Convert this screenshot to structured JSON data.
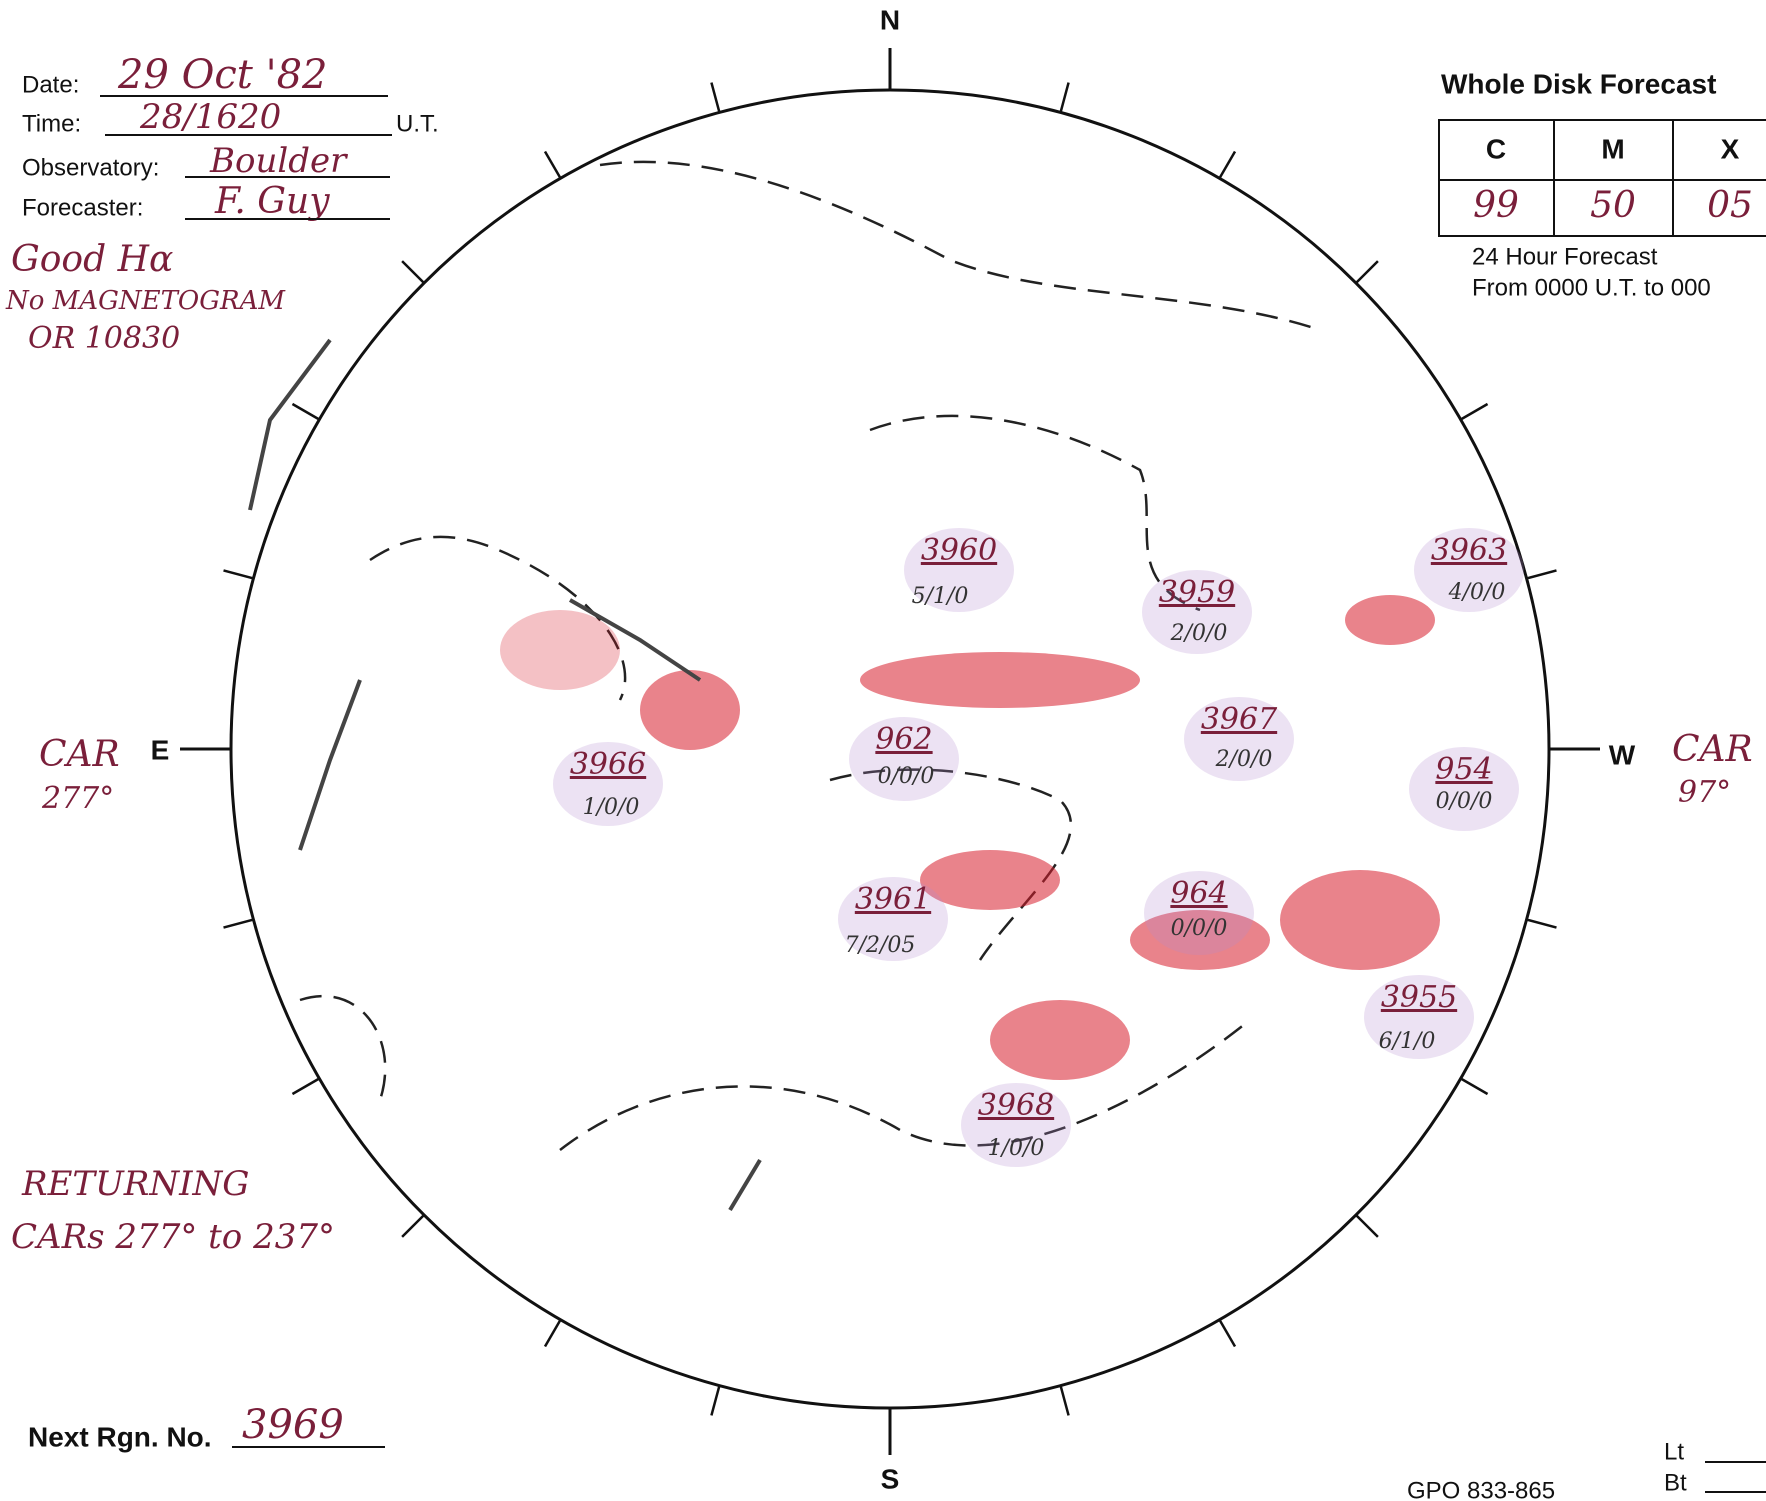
{
  "header": {
    "date_label": "Date:",
    "date": "29 Oct '82",
    "time_label": "Time:",
    "time": "28/1620",
    "time_unit": "U.T.",
    "observatory_label": "Observatory:",
    "observatory": "Boulder",
    "forecaster_label": "Forecaster:",
    "forecaster": "F. Guy"
  },
  "notes": [
    "Good Hα",
    "No MAGNETOGRAM",
    "OR 10830"
  ],
  "forecast": {
    "title": "Whole Disk Forecast",
    "columns": [
      "C",
      "M",
      "X"
    ],
    "values": [
      "99",
      "50",
      "05"
    ],
    "period": "24 Hour Forecast",
    "range": "From 0000 U.T. to 000"
  },
  "disk": {
    "north": "N",
    "south": "S",
    "east": "E",
    "west": "W",
    "east_car": [
      "CAR",
      "277°"
    ],
    "west_car": [
      "CAR",
      "97°"
    ]
  },
  "returning": [
    "RETURNING",
    "CARs 277° to 237°"
  ],
  "next_region": {
    "label": "Next Rgn. No.",
    "value": "3969"
  },
  "footer": {
    "gpo": "GPO 833-865",
    "lt": "Lt",
    "bt": "Bt"
  },
  "regions": [
    {
      "number": "3960",
      "class": "5/1/0"
    },
    {
      "number": "3959",
      "class": "2/0/0"
    },
    {
      "number": "3963",
      "class": "4/0/0"
    },
    {
      "number": "3966",
      "class": "1/0/0"
    },
    {
      "number": "962",
      "class": "0/0/0"
    },
    {
      "number": "3967",
      "class": "2/0/0"
    },
    {
      "number": "954",
      "class": "0/0/0"
    },
    {
      "number": "3961",
      "class": "7/2/05"
    },
    {
      "number": "964",
      "class": "0/0/0"
    },
    {
      "number": "3955",
      "class": "6/1/0"
    },
    {
      "number": "3968",
      "class": "1/0/0"
    }
  ]
}
